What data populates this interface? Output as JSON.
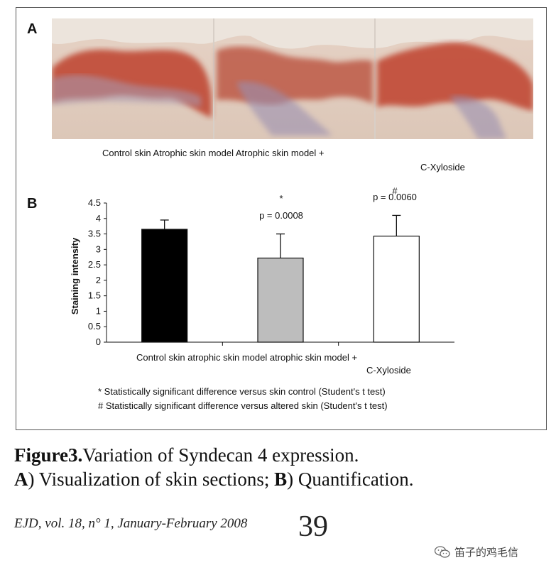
{
  "panel_a": {
    "letter": "A",
    "labels": {
      "line1": "Control skin Atrophic skin model Atrophic skin model +",
      "line2": "C-Xyloside"
    }
  },
  "panel_b": {
    "letter": "B",
    "annotations": {
      "star": "*",
      "p1": "p = 0.0008",
      "hash": "#",
      "p2": "p = 0.0060"
    },
    "notes": {
      "note1": "* Statistically significant difference versus skin control (Student's t test)",
      "note2": "# Statistically significant difference versus altered skin (Student's t test)"
    }
  },
  "chart_data": {
    "type": "bar",
    "categories": [
      "Control skin",
      "atrophic skin model",
      "atrophic skin model + C-Xyloside"
    ],
    "category_label_lines": {
      "line1": "Control skin atrophic skin model atrophic skin model +",
      "line2": "C-Xyloside"
    },
    "values": [
      3.65,
      2.72,
      3.43
    ],
    "error": [
      0.3,
      0.78,
      0.67
    ],
    "bar_colors": [
      "#000000",
      "#bdbdbd",
      "#ffffff"
    ],
    "ylabel": "Staining intensity",
    "ylim": [
      0,
      4.5
    ],
    "yticks": [
      "0",
      "0.5",
      "1",
      "1.5",
      "2",
      "2.5",
      "3",
      "3.5",
      "4",
      "4.5"
    ],
    "grid": false
  },
  "caption": {
    "bold1": "Figure3.",
    "text1": "Variation of Syndecan 4 expression.",
    "boldA": "A",
    "textA": ") Visualization of skin sections; ",
    "boldB": "B",
    "textB": ") Quantification."
  },
  "footer": {
    "journal": "EJD, vol. 18, n° 1, January-February 2008",
    "page_number": "39"
  },
  "watermark": {
    "text": "笛子的鸡毛信",
    "icon": "wechat-icon"
  }
}
